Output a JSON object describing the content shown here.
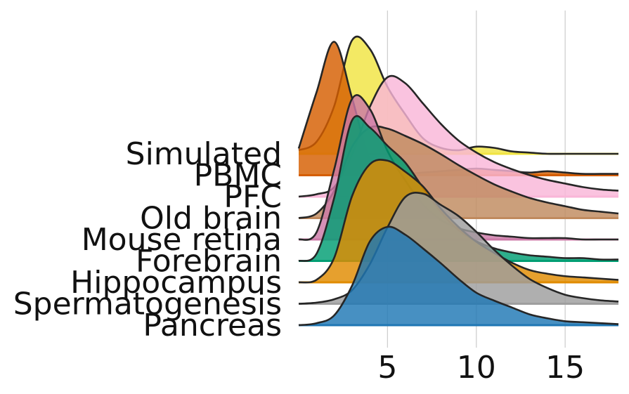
{
  "chart_data": {
    "type": "area",
    "subtype": "ridgeline",
    "title": "",
    "xlabel": "",
    "ylabel": "",
    "xlim": [
      0,
      18
    ],
    "xticks": [
      5,
      10,
      15
    ],
    "grid": "vertical",
    "legend": "none",
    "x": [
      0,
      1,
      2,
      3,
      4,
      5,
      6,
      7,
      8,
      9,
      10,
      11,
      12,
      13,
      14,
      15,
      16,
      17,
      18
    ],
    "series": [
      {
        "name": "Pancreas",
        "color": "#1f77b4",
        "values": [
          0.0,
          0.02,
          0.1,
          0.4,
          0.85,
          1.0,
          0.92,
          0.78,
          0.63,
          0.47,
          0.33,
          0.25,
          0.18,
          0.11,
          0.07,
          0.04,
          0.03,
          0.02,
          0.01
        ]
      },
      {
        "name": "Spermatogenesis",
        "color": "#9e9e9e",
        "values": [
          0.0,
          0.01,
          0.04,
          0.12,
          0.35,
          0.68,
          0.95,
          0.98,
          0.88,
          0.78,
          0.64,
          0.48,
          0.34,
          0.22,
          0.14,
          0.08,
          0.05,
          0.03,
          0.02
        ]
      },
      {
        "name": "Hippocampus",
        "color": "#e08b00",
        "values": [
          0.0,
          0.02,
          0.2,
          0.7,
          0.96,
          0.99,
          0.9,
          0.78,
          0.6,
          0.45,
          0.33,
          0.24,
          0.16,
          0.1,
          0.07,
          0.05,
          0.04,
          0.03,
          0.02
        ]
      },
      {
        "name": "Forebrain",
        "color": "#009e73",
        "values": [
          0.0,
          0.05,
          0.45,
          1.0,
          0.95,
          0.82,
          0.7,
          0.52,
          0.35,
          0.22,
          0.14,
          0.09,
          0.06,
          0.04,
          0.03,
          0.02,
          0.02,
          0.01,
          0.01
        ]
      },
      {
        "name": "Mouse retina",
        "color": "#cc79a7",
        "values": [
          0.0,
          0.05,
          0.5,
          1.0,
          0.93,
          0.63,
          0.42,
          0.25,
          0.14,
          0.08,
          0.05,
          0.03,
          0.02,
          0.01,
          0.01,
          0.01,
          0.0,
          0.0,
          0.0
        ]
      },
      {
        "name": "Old brain",
        "color": "#c08a5e",
        "values": [
          0.0,
          0.05,
          0.3,
          0.78,
          0.99,
          0.98,
          0.9,
          0.81,
          0.7,
          0.58,
          0.47,
          0.37,
          0.29,
          0.22,
          0.17,
          0.13,
          0.09,
          0.07,
          0.05
        ]
      },
      {
        "name": "PFC",
        "color": "#f9b6d8",
        "values": [
          0.0,
          0.02,
          0.08,
          0.35,
          0.75,
          1.0,
          0.95,
          0.78,
          0.61,
          0.47,
          0.37,
          0.29,
          0.23,
          0.18,
          0.14,
          0.11,
          0.08,
          0.06,
          0.05
        ]
      },
      {
        "name": "PBMC",
        "color": "#d55e00",
        "values": [
          0.2,
          0.62,
          1.0,
          0.58,
          0.12,
          0.02,
          0.01,
          0.02,
          0.03,
          0.04,
          0.05,
          0.04,
          0.03,
          0.02,
          0.03,
          0.02,
          0.01,
          0.01,
          0.01
        ]
      },
      {
        "name": "Simulated",
        "color": "#f0e442",
        "values": [
          0.03,
          0.1,
          0.4,
          0.95,
          0.88,
          0.56,
          0.33,
          0.13,
          0.05,
          0.03,
          0.06,
          0.05,
          0.02,
          0.01,
          0.0,
          0.0,
          0.0,
          0.0,
          0.0
        ]
      }
    ]
  }
}
